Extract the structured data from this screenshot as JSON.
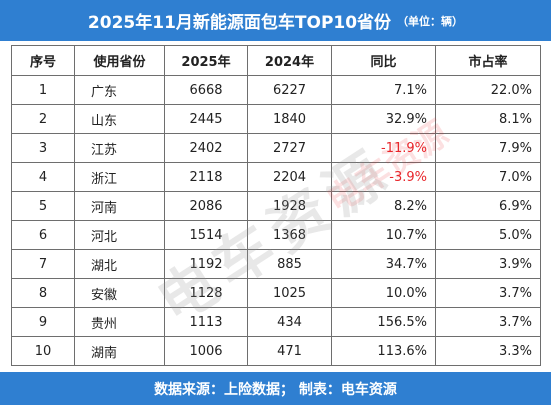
{
  "title": "2025年11月新能源面包车TOP10省份",
  "unit": "（单位：辆）",
  "headers": [
    "序号",
    "使用省份",
    "2025年",
    "2024年",
    "同比",
    "市占率"
  ],
  "rows": [
    [
      "1",
      "广东",
      "6668",
      "6227",
      "7.1%",
      "22.0%"
    ],
    [
      "2",
      "山东",
      "2445",
      "1840",
      "32.9%",
      "8.1%"
    ],
    [
      "3",
      "江苏",
      "2402",
      "2727",
      "-11.9%",
      "7.9%"
    ],
    [
      "4",
      "浙江",
      "2118",
      "2204",
      "-3.9%",
      "7.0%"
    ],
    [
      "5",
      "河南",
      "2086",
      "1928",
      "8.2%",
      "6.9%"
    ],
    [
      "6",
      "河北",
      "1514",
      "1368",
      "10.7%",
      "5.0%"
    ],
    [
      "7",
      "湖北",
      "1192",
      "885",
      "34.7%",
      "3.9%"
    ],
    [
      "8",
      "安徽",
      "1128",
      "1025",
      "10.0%",
      "3.7%"
    ],
    [
      "9",
      "贵州",
      "1113",
      "434",
      "156.5%",
      "3.7%"
    ],
    [
      "10",
      "湖南",
      "1006",
      "471",
      "113.6%",
      "3.3%"
    ]
  ],
  "footer": "数据来源：上险数据；  制表：电车资源",
  "watermark": "电车资源",
  "colors": {
    "header_bar": "#2f7fd1",
    "negative": "#e8262b"
  }
}
